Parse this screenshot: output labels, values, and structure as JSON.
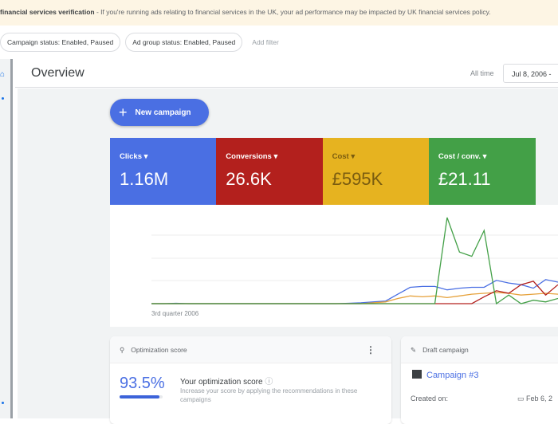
{
  "banner": {
    "title": "financial services verification",
    "text": " - If you're running ads relating to financial services in the UK, your ad performance may be impacted by UK financial services policy."
  },
  "filters": [
    {
      "label": "Campaign status: Enabled, Paused"
    },
    {
      "label": "Ad group status: Enabled, Paused"
    }
  ],
  "add_filter": "Add filter",
  "header": {
    "title": "Overview",
    "range_label": "All time",
    "date": "Jul 8, 2006 -"
  },
  "new_campaign": "New campaign",
  "metrics": [
    {
      "label": "Clicks",
      "value": "1.16M",
      "color": "#4a6fe3"
    },
    {
      "label": "Conversions",
      "value": "26.6K",
      "color": "#b3201d"
    },
    {
      "label": "Cost",
      "value": "£595K",
      "color": "#e6b320"
    },
    {
      "label": "Cost / conv.",
      "value": "£21.11",
      "color": "#43a047"
    }
  ],
  "chart_data": {
    "type": "line",
    "x_tick_label": "3rd quarter 2006",
    "grid": true,
    "series": [
      {
        "color": "#4a6fe3",
        "values": [
          0,
          0,
          0.5,
          0,
          0,
          0,
          0,
          0,
          0,
          0,
          0,
          0,
          0,
          0,
          0,
          0,
          0.5,
          1,
          2,
          3,
          11,
          19,
          20,
          20,
          16,
          18,
          19,
          19,
          27,
          24,
          22,
          18,
          28,
          25
        ]
      },
      {
        "color": "#e6a23c",
        "values": [
          0,
          0,
          0,
          0,
          0,
          0,
          0,
          0,
          0,
          0,
          0,
          0,
          0,
          0,
          0,
          0,
          0,
          0,
          1,
          2,
          6,
          9,
          8,
          9,
          7,
          9,
          11,
          12,
          13,
          12,
          10,
          11,
          12,
          11
        ]
      },
      {
        "color": "#b3201d",
        "values": [
          0,
          0,
          0,
          0,
          0,
          0,
          0,
          0,
          0,
          0,
          0,
          0,
          0,
          0,
          0,
          0,
          0,
          0,
          0,
          0,
          0,
          0,
          0,
          0,
          0,
          0,
          0,
          8,
          15,
          12,
          22,
          26,
          10,
          22
        ]
      },
      {
        "color": "#43a047",
        "values": [
          0,
          0,
          0,
          0,
          0,
          0,
          0,
          0,
          0,
          0,
          0,
          0,
          0,
          0,
          0,
          0,
          0,
          0,
          0,
          0,
          0,
          0,
          0,
          0,
          100,
          60,
          55,
          85,
          0,
          10,
          0,
          4,
          2,
          6
        ]
      }
    ]
  },
  "optimization": {
    "title": "Optimization score",
    "score": "93.5%",
    "score_fraction": 0.935,
    "heading": "Your optimization score",
    "desc": "Increase your score by applying the recommendations in these campaigns"
  },
  "draft": {
    "title": "Draft campaign",
    "campaign": "Campaign #3",
    "created_label": "Created on:",
    "created_value": "Feb 6, 2"
  }
}
